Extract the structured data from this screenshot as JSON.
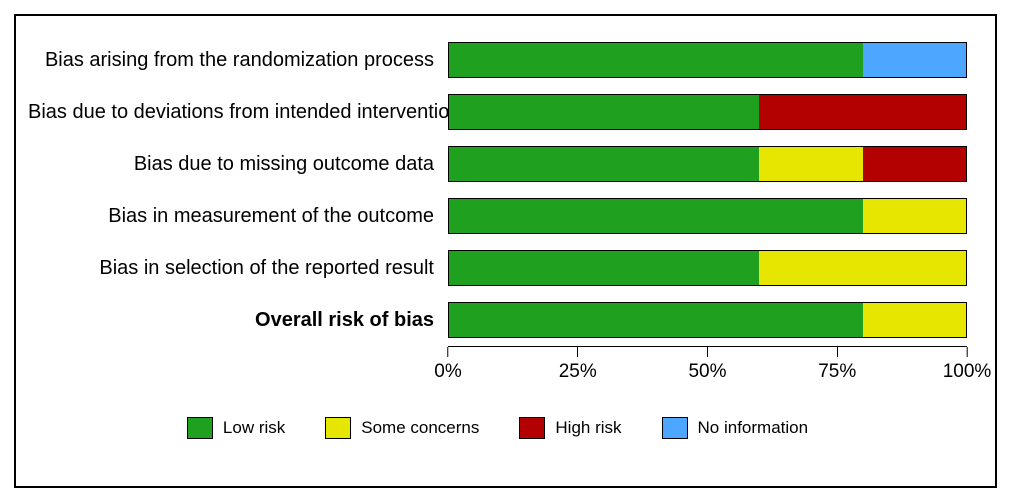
{
  "chart": {
    "type": "stacked-bar-horizontal",
    "background_color": "#ffffff",
    "border_color": "#000000",
    "font_family": "Arial",
    "label_fontsize": 20,
    "tick_fontsize": 19,
    "legend_fontsize": 17,
    "xlim": [
      0,
      100
    ],
    "xtick_values": [
      0,
      25,
      50,
      75,
      100
    ],
    "xtick_labels": [
      "0%",
      "25%",
      "50%",
      "75%",
      "100%"
    ],
    "colors": {
      "low_risk": "#1fa01f",
      "some_concerns": "#e6e600",
      "high_risk": "#b30000",
      "no_information": "#4da6ff"
    },
    "legend": [
      {
        "key": "low_risk",
        "label": "Low risk"
      },
      {
        "key": "some_concerns",
        "label": "Some concerns"
      },
      {
        "key": "high_risk",
        "label": "High risk"
      },
      {
        "key": "no_information",
        "label": "No information"
      }
    ],
    "rows": [
      {
        "label": "Bias arising from the randomization process",
        "bold": false,
        "segments": [
          {
            "key": "low_risk",
            "value": 80
          },
          {
            "key": "no_information",
            "value": 20
          }
        ]
      },
      {
        "label": "Bias due to deviations from intended interventions",
        "bold": false,
        "segments": [
          {
            "key": "low_risk",
            "value": 60
          },
          {
            "key": "high_risk",
            "value": 40
          }
        ]
      },
      {
        "label": "Bias due to missing outcome data",
        "bold": false,
        "segments": [
          {
            "key": "low_risk",
            "value": 60
          },
          {
            "key": "some_concerns",
            "value": 20
          },
          {
            "key": "high_risk",
            "value": 20
          }
        ]
      },
      {
        "label": "Bias in measurement of the outcome",
        "bold": false,
        "segments": [
          {
            "key": "low_risk",
            "value": 80
          },
          {
            "key": "some_concerns",
            "value": 20
          }
        ]
      },
      {
        "label": "Bias in selection of the reported result",
        "bold": false,
        "segments": [
          {
            "key": "low_risk",
            "value": 60
          },
          {
            "key": "some_concerns",
            "value": 40
          }
        ]
      },
      {
        "label": "Overall risk of bias",
        "bold": true,
        "segments": [
          {
            "key": "low_risk",
            "value": 80
          },
          {
            "key": "some_concerns",
            "value": 20
          }
        ]
      }
    ]
  }
}
